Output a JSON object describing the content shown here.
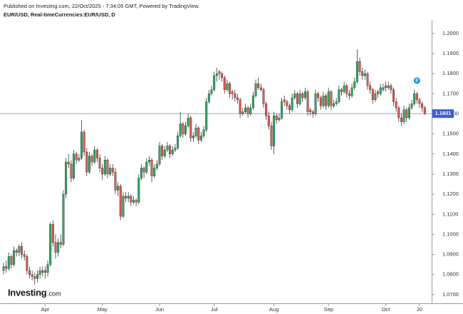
{
  "chart_data": {
    "type": "candlestick",
    "header": "Published on Investing.com, 22/Oct/2025 - 7:34:05 GMT, Powered by TradingView.",
    "title": "EUR/USD, Real-timeCurrencies:EUR/USD, D",
    "brand": [
      "Investing",
      ".com"
    ],
    "event_marker": "P",
    "up_color": "#2bab62",
    "down_color": "#e05a4f",
    "ylim": [
      1.0657,
      1.2067
    ],
    "yticks": [
      {
        "value": 1.07,
        "label": "1.0700"
      },
      {
        "value": 1.08,
        "label": "1.0800"
      },
      {
        "value": 1.09,
        "label": "1.0900"
      },
      {
        "value": 1.1,
        "label": "1.1000"
      },
      {
        "value": 1.11,
        "label": "1.1100"
      },
      {
        "value": 1.12,
        "label": "1.1200"
      },
      {
        "value": 1.13,
        "label": "1.1300"
      },
      {
        "value": 1.14,
        "label": "1.1400"
      },
      {
        "value": 1.15,
        "label": "1.1500"
      },
      {
        "value": 1.16,
        "label": "1.1600"
      },
      {
        "value": 1.17,
        "label": "1.1700"
      },
      {
        "value": 1.18,
        "label": "1.1800"
      },
      {
        "value": 1.19,
        "label": "1.1900"
      },
      {
        "value": 1.2,
        "label": "1.2000"
      }
    ],
    "last_price": {
      "value": 1.1601,
      "label": "1.1601"
    },
    "categories": [
      null,
      null,
      null,
      null,
      null,
      null,
      null,
      null,
      null,
      null,
      null,
      null,
      null,
      null,
      null,
      null,
      "Apr",
      null,
      null,
      null,
      null,
      null,
      null,
      null,
      null,
      null,
      null,
      null,
      null,
      null,
      null,
      null,
      null,
      null,
      null,
      null,
      null,
      null,
      "May",
      null,
      null,
      null,
      null,
      null,
      null,
      null,
      null,
      null,
      null,
      null,
      null,
      null,
      null,
      null,
      null,
      null,
      null,
      null,
      null,
      null,
      "Jun",
      null,
      null,
      null,
      null,
      null,
      null,
      null,
      null,
      null,
      null,
      null,
      null,
      null,
      null,
      null,
      null,
      null,
      null,
      null,
      null,
      "Jul",
      null,
      null,
      null,
      null,
      null,
      null,
      null,
      null,
      null,
      null,
      null,
      null,
      null,
      null,
      null,
      null,
      null,
      null,
      null,
      null,
      null,
      null,
      "Aug",
      null,
      null,
      null,
      null,
      null,
      null,
      null,
      null,
      null,
      null,
      null,
      null,
      null,
      null,
      null,
      null,
      null,
      null,
      null,
      null,
      "Sep",
      null,
      null,
      null,
      null,
      null,
      null,
      null,
      null,
      null,
      null,
      null,
      null,
      null,
      null,
      null,
      null,
      null,
      null,
      null,
      null,
      null,
      "Oct",
      null,
      null,
      null,
      null,
      null,
      null,
      null,
      null,
      null,
      null,
      null,
      null,
      "20",
      null,
      null
    ],
    "candles": [
      [
        1.082,
        1.086,
        1.08,
        1.084
      ],
      [
        1.084,
        1.087,
        1.081,
        1.083
      ],
      [
        1.083,
        1.091,
        1.082,
        1.089
      ],
      [
        1.089,
        1.09,
        1.083,
        1.085
      ],
      [
        1.085,
        1.094,
        1.084,
        1.092
      ],
      [
        1.092,
        1.093,
        1.089,
        1.091
      ],
      [
        1.091,
        1.095,
        1.089,
        1.094
      ],
      [
        1.094,
        1.096,
        1.088,
        1.09
      ],
      [
        1.09,
        1.092,
        1.087,
        1.089
      ],
      [
        1.089,
        1.09,
        1.08,
        1.082
      ],
      [
        1.082,
        1.084,
        1.078,
        1.08
      ],
      [
        1.08,
        1.082,
        1.077,
        1.079
      ],
      [
        1.079,
        1.081,
        1.075,
        1.078
      ],
      [
        1.078,
        1.082,
        1.076,
        1.08
      ],
      [
        1.08,
        1.084,
        1.078,
        1.082
      ],
      [
        1.081,
        1.084,
        1.079,
        1.082
      ],
      [
        1.082,
        1.084,
        1.078,
        1.081
      ],
      [
        1.081,
        1.087,
        1.079,
        1.085
      ],
      [
        1.085,
        1.106,
        1.084,
        1.105
      ],
      [
        1.105,
        1.107,
        1.094,
        1.096
      ],
      [
        1.096,
        1.1,
        1.088,
        1.091
      ],
      [
        1.091,
        1.098,
        1.089,
        1.096
      ],
      [
        1.096,
        1.1,
        1.093,
        1.095
      ],
      [
        1.095,
        1.122,
        1.094,
        1.12
      ],
      [
        1.12,
        1.138,
        1.118,
        1.136
      ],
      [
        1.136,
        1.14,
        1.133,
        1.135
      ],
      [
        1.135,
        1.137,
        1.126,
        1.128
      ],
      [
        1.128,
        1.142,
        1.127,
        1.14
      ],
      [
        1.14,
        1.141,
        1.135,
        1.137
      ],
      [
        1.137,
        1.14,
        1.136,
        1.138
      ],
      [
        1.138,
        1.157,
        1.137,
        1.151
      ],
      [
        1.151,
        1.152,
        1.139,
        1.141
      ],
      [
        1.141,
        1.143,
        1.129,
        1.131
      ],
      [
        1.131,
        1.141,
        1.13,
        1.139
      ],
      [
        1.139,
        1.14,
        1.134,
        1.136
      ],
      [
        1.136,
        1.144,
        1.135,
        1.142
      ],
      [
        1.142,
        1.143,
        1.136,
        1.138
      ],
      [
        1.138,
        1.14,
        1.131,
        1.133
      ],
      [
        1.133,
        1.135,
        1.127,
        1.13
      ],
      [
        1.13,
        1.139,
        1.129,
        1.137
      ],
      [
        1.137,
        1.138,
        1.128,
        1.13
      ],
      [
        1.13,
        1.135,
        1.129,
        1.133
      ],
      [
        1.133,
        1.135,
        1.129,
        1.131
      ],
      [
        1.131,
        1.133,
        1.12,
        1.122
      ],
      [
        1.122,
        1.126,
        1.119,
        1.124
      ],
      [
        1.124,
        1.125,
        1.107,
        1.109
      ],
      [
        1.109,
        1.121,
        1.108,
        1.119
      ],
      [
        1.119,
        1.121,
        1.116,
        1.118
      ],
      [
        1.118,
        1.121,
        1.116,
        1.119
      ],
      [
        1.119,
        1.12,
        1.114,
        1.116
      ],
      [
        1.116,
        1.119,
        1.115,
        1.117
      ],
      [
        1.117,
        1.118,
        1.114,
        1.116
      ],
      [
        1.116,
        1.13,
        1.115,
        1.128
      ],
      [
        1.128,
        1.135,
        1.127,
        1.133
      ],
      [
        1.133,
        1.134,
        1.128,
        1.131
      ],
      [
        1.131,
        1.138,
        1.13,
        1.136
      ],
      [
        1.136,
        1.139,
        1.134,
        1.137
      ],
      [
        1.137,
        1.138,
        1.126,
        1.129
      ],
      [
        1.129,
        1.135,
        1.128,
        1.133
      ],
      [
        1.133,
        1.137,
        1.132,
        1.135
      ],
      [
        1.135,
        1.146,
        1.134,
        1.144
      ],
      [
        1.144,
        1.145,
        1.137,
        1.139
      ],
      [
        1.139,
        1.144,
        1.138,
        1.142
      ],
      [
        1.142,
        1.146,
        1.141,
        1.144
      ],
      [
        1.144,
        1.145,
        1.138,
        1.14
      ],
      [
        1.14,
        1.144,
        1.139,
        1.142
      ],
      [
        1.142,
        1.145,
        1.141,
        1.143
      ],
      [
        1.143,
        1.151,
        1.142,
        1.149
      ],
      [
        1.149,
        1.161,
        1.148,
        1.155
      ],
      [
        1.155,
        1.156,
        1.148,
        1.15
      ],
      [
        1.15,
        1.156,
        1.149,
        1.154
      ],
      [
        1.154,
        1.16,
        1.153,
        1.158
      ],
      [
        1.158,
        1.159,
        1.146,
        1.148
      ],
      [
        1.148,
        1.151,
        1.146,
        1.149
      ],
      [
        1.149,
        1.155,
        1.148,
        1.153
      ],
      [
        1.153,
        1.154,
        1.145,
        1.147
      ],
      [
        1.147,
        1.151,
        1.146,
        1.149
      ],
      [
        1.149,
        1.154,
        1.148,
        1.152
      ],
      [
        1.152,
        1.168,
        1.151,
        1.166
      ],
      [
        1.166,
        1.172,
        1.165,
        1.17
      ],
      [
        1.17,
        1.174,
        1.169,
        1.172
      ],
      [
        1.172,
        1.181,
        1.171,
        1.179
      ],
      [
        1.179,
        1.183,
        1.176,
        1.18
      ],
      [
        1.181,
        1.182,
        1.177,
        1.18
      ],
      [
        1.18,
        1.181,
        1.176,
        1.178
      ],
      [
        1.178,
        1.179,
        1.17,
        1.172
      ],
      [
        1.172,
        1.177,
        1.171,
        1.175
      ],
      [
        1.175,
        1.176,
        1.168,
        1.17
      ],
      [
        1.171,
        1.172,
        1.167,
        1.17
      ],
      [
        1.17,
        1.172,
        1.166,
        1.168
      ],
      [
        1.168,
        1.17,
        1.165,
        1.167
      ],
      [
        1.167,
        1.168,
        1.158,
        1.16
      ],
      [
        1.16,
        1.163,
        1.159,
        1.161
      ],
      [
        1.161,
        1.165,
        1.16,
        1.163
      ],
      [
        1.163,
        1.164,
        1.158,
        1.16
      ],
      [
        1.16,
        1.165,
        1.159,
        1.163
      ],
      [
        1.163,
        1.171,
        1.162,
        1.169
      ],
      [
        1.169,
        1.177,
        1.168,
        1.175
      ],
      [
        1.175,
        1.178,
        1.172,
        1.173
      ],
      [
        1.173,
        1.175,
        1.171,
        1.172
      ],
      [
        1.172,
        1.173,
        1.163,
        1.165
      ],
      [
        1.165,
        1.166,
        1.157,
        1.159
      ],
      [
        1.159,
        1.161,
        1.152,
        1.154
      ],
      [
        1.154,
        1.156,
        1.142,
        1.144
      ],
      [
        1.144,
        1.161,
        1.14,
        1.159
      ],
      [
        1.159,
        1.16,
        1.155,
        1.157
      ],
      [
        1.157,
        1.16,
        1.156,
        1.158
      ],
      [
        1.158,
        1.168,
        1.157,
        1.166
      ],
      [
        1.167,
        1.169,
        1.164,
        1.166
      ],
      [
        1.166,
        1.167,
        1.162,
        1.164
      ],
      [
        1.164,
        1.165,
        1.16,
        1.162
      ],
      [
        1.162,
        1.17,
        1.161,
        1.168
      ],
      [
        1.168,
        1.172,
        1.167,
        1.17
      ],
      [
        1.17,
        1.171,
        1.163,
        1.165
      ],
      [
        1.165,
        1.172,
        1.164,
        1.17
      ],
      [
        1.17,
        1.171,
        1.166,
        1.168
      ],
      [
        1.168,
        1.173,
        1.167,
        1.171
      ],
      [
        1.171,
        1.172,
        1.159,
        1.161
      ],
      [
        1.162,
        1.163,
        1.159,
        1.161
      ],
      [
        1.161,
        1.162,
        1.158,
        1.16
      ],
      [
        1.16,
        1.172,
        1.159,
        1.17
      ],
      [
        1.17,
        1.171,
        1.166,
        1.168
      ],
      [
        1.168,
        1.169,
        1.162,
        1.164
      ],
      [
        1.164,
        1.171,
        1.163,
        1.169
      ],
      [
        1.169,
        1.17,
        1.162,
        1.164
      ],
      [
        1.164,
        1.173,
        1.163,
        1.171
      ],
      [
        1.171,
        1.172,
        1.162,
        1.164
      ],
      [
        1.164,
        1.167,
        1.163,
        1.165
      ],
      [
        1.165,
        1.168,
        1.164,
        1.166
      ],
      [
        1.166,
        1.174,
        1.165,
        1.172
      ],
      [
        1.172,
        1.173,
        1.169,
        1.171
      ],
      [
        1.171,
        1.176,
        1.17,
        1.174
      ],
      [
        1.174,
        1.175,
        1.168,
        1.17
      ],
      [
        1.17,
        1.172,
        1.167,
        1.169
      ],
      [
        1.169,
        1.175,
        1.168,
        1.173
      ],
      [
        1.173,
        1.178,
        1.172,
        1.176
      ],
      [
        1.176,
        1.192,
        1.175,
        1.186
      ],
      [
        1.186,
        1.188,
        1.179,
        1.181
      ],
      [
        1.181,
        1.183,
        1.177,
        1.179
      ],
      [
        1.179,
        1.182,
        1.177,
        1.18
      ],
      [
        1.18,
        1.181,
        1.172,
        1.174
      ],
      [
        1.174,
        1.176,
        1.17,
        1.172
      ],
      [
        1.172,
        1.173,
        1.165,
        1.167
      ],
      [
        1.167,
        1.172,
        1.166,
        1.17
      ],
      [
        1.171,
        1.172,
        1.168,
        1.17
      ],
      [
        1.17,
        1.175,
        1.169,
        1.173
      ],
      [
        1.172,
        1.175,
        1.171,
        1.173
      ],
      [
        1.174,
        1.176,
        1.171,
        1.173
      ],
      [
        1.173,
        1.176,
        1.172,
        1.174
      ],
      [
        1.174,
        1.175,
        1.17,
        1.172
      ],
      [
        1.172,
        1.173,
        1.164,
        1.166
      ],
      [
        1.166,
        1.168,
        1.161,
        1.163
      ],
      [
        1.163,
        1.164,
        1.156,
        1.158
      ],
      [
        1.158,
        1.16,
        1.154,
        1.156
      ],
      [
        1.156,
        1.164,
        1.155,
        1.162
      ],
      [
        1.162,
        1.163,
        1.156,
        1.158
      ],
      [
        1.158,
        1.165,
        1.157,
        1.163
      ],
      [
        1.163,
        1.167,
        1.162,
        1.165
      ],
      [
        1.165,
        1.172,
        1.164,
        1.17
      ],
      [
        1.17,
        1.171,
        1.165,
        1.167
      ],
      [
        1.167,
        1.168,
        1.163,
        1.165
      ],
      [
        1.165,
        1.166,
        1.161,
        1.163
      ],
      [
        1.163,
        1.164,
        1.1595,
        1.1601
      ]
    ]
  }
}
